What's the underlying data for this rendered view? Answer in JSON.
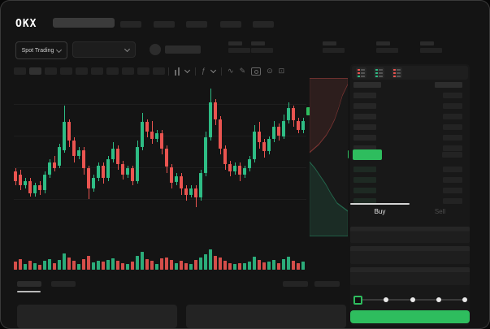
{
  "header": {
    "logo": "OKX"
  },
  "market_bar": {
    "selector_label": "Spot Trading"
  },
  "chart_toolbar": {
    "icons": {
      "indicators": "ƒ",
      "line_tool": "∿",
      "draw_tool": "✎",
      "settings": "⊙",
      "fullscreen": "⊡"
    }
  },
  "order_panel": {
    "buy_label": "Buy",
    "sell_label": "Sell",
    "book": {
      "ask_rows": 6,
      "bid_rows": 4
    }
  },
  "colors": {
    "up_green": "#2ebd85",
    "down_red": "#ea5450",
    "accent_green": "#2ebd5e",
    "skeleton_gray": "#262626"
  },
  "chart_data": {
    "type": "candlestick",
    "title": "",
    "xlabel": "",
    "ylabel": "",
    "price_scale": {
      "min": 0,
      "max": 100
    },
    "grid": true,
    "up_color": "#2ebd85",
    "down_color": "#ea5450",
    "candles": [
      [
        42,
        36,
        44,
        33
      ],
      [
        40,
        33,
        43,
        30
      ],
      [
        33,
        36,
        38,
        31
      ],
      [
        36,
        28,
        38,
        26
      ],
      [
        28,
        33,
        35,
        26
      ],
      [
        33,
        30,
        36,
        27
      ],
      [
        30,
        40,
        42,
        28
      ],
      [
        40,
        48,
        50,
        38
      ],
      [
        48,
        44,
        52,
        42
      ],
      [
        46,
        58,
        60,
        44
      ],
      [
        56,
        74,
        85,
        54
      ],
      [
        74,
        62,
        76,
        58
      ],
      [
        62,
        52,
        64,
        48
      ],
      [
        52,
        56,
        58,
        50
      ],
      [
        56,
        44,
        58,
        40
      ],
      [
        44,
        31,
        46,
        24
      ],
      [
        31,
        38,
        40,
        29
      ],
      [
        38,
        46,
        48,
        36
      ],
      [
        46,
        38,
        48,
        34
      ],
      [
        38,
        50,
        52,
        36
      ],
      [
        50,
        57,
        61,
        48
      ],
      [
        57,
        47,
        59,
        43
      ],
      [
        47,
        40,
        49,
        37
      ],
      [
        40,
        44,
        46,
        38
      ],
      [
        44,
        36,
        46,
        33
      ],
      [
        36,
        58,
        62,
        34
      ],
      [
        58,
        74,
        80,
        56
      ],
      [
        74,
        68,
        76,
        64
      ],
      [
        68,
        63,
        75,
        60
      ],
      [
        63,
        67,
        69,
        61
      ],
      [
        67,
        57,
        69,
        53
      ],
      [
        57,
        45,
        59,
        41
      ],
      [
        45,
        35,
        47,
        31
      ],
      [
        35,
        39,
        41,
        33
      ],
      [
        39,
        31,
        41,
        27
      ],
      [
        31,
        27,
        33,
        23
      ],
      [
        27,
        31,
        33,
        25
      ],
      [
        31,
        25,
        33,
        19
      ],
      [
        25,
        41,
        43,
        23
      ],
      [
        41,
        64,
        68,
        39
      ],
      [
        64,
        87,
        96,
        62
      ],
      [
        87,
        76,
        89,
        72
      ],
      [
        76,
        57,
        78,
        53
      ],
      [
        57,
        47,
        59,
        43
      ],
      [
        47,
        42,
        49,
        39
      ],
      [
        42,
        46,
        48,
        40
      ],
      [
        46,
        40,
        48,
        36
      ],
      [
        40,
        44,
        46,
        38
      ],
      [
        44,
        50,
        52,
        42
      ],
      [
        50,
        68,
        72,
        48
      ],
      [
        68,
        61,
        74,
        57
      ],
      [
        61,
        55,
        63,
        51
      ],
      [
        55,
        63,
        65,
        53
      ],
      [
        63,
        71,
        75,
        61
      ],
      [
        71,
        65,
        73,
        62
      ],
      [
        65,
        75,
        79,
        63
      ],
      [
        75,
        83,
        87,
        73
      ],
      [
        83,
        75,
        85,
        71
      ],
      [
        75,
        69,
        77,
        67
      ],
      [
        69,
        75,
        77,
        67
      ]
    ],
    "volumes": [
      35,
      45,
      25,
      40,
      30,
      22,
      38,
      48,
      28,
      42,
      72,
      55,
      40,
      26,
      45,
      60,
      33,
      40,
      35,
      42,
      50,
      38,
      30,
      24,
      36,
      62,
      78,
      45,
      38,
      26,
      50,
      55,
      42,
      28,
      40,
      30,
      26,
      44,
      52,
      68,
      90,
      60,
      52,
      38,
      28,
      24,
      30,
      28,
      34,
      58,
      42,
      32,
      36,
      44,
      30,
      46,
      56,
      40,
      28,
      34
    ],
    "depth": {
      "asks": [
        [
          100,
          4
        ],
        [
          86,
          11
        ],
        [
          76,
          19
        ],
        [
          66,
          26
        ],
        [
          56,
          31
        ],
        [
          44,
          36
        ],
        [
          24,
          42
        ],
        [
          0,
          47
        ]
      ],
      "bids": [
        [
          0,
          53
        ],
        [
          14,
          57
        ],
        [
          28,
          62
        ],
        [
          42,
          67
        ],
        [
          56,
          73
        ],
        [
          72,
          79
        ],
        [
          100,
          84
        ]
      ]
    }
  }
}
